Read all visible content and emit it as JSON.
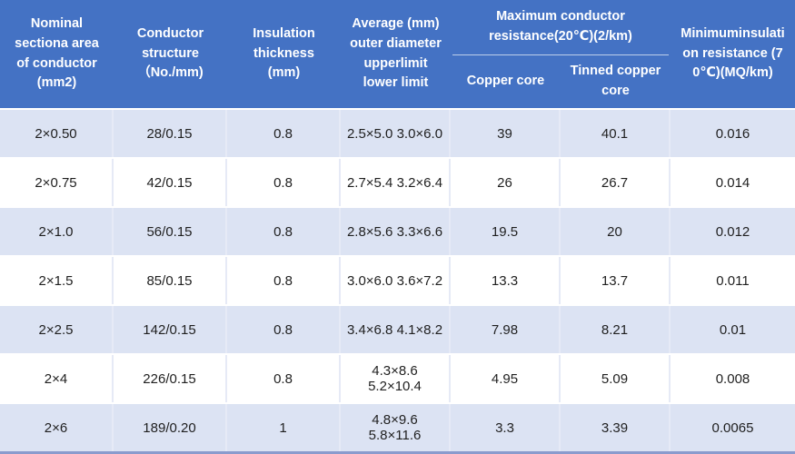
{
  "colors": {
    "header_bg": "#4472C4",
    "header_text": "#FFFFFF",
    "stripe_row_bg": "#DCE3F3",
    "plain_row_bg": "#FFFFFF",
    "body_text": "#1F1F1F",
    "cell_divider": "#E6EAF6",
    "bottom_bar": "#8A9BCD"
  },
  "table": {
    "headers": {
      "nominal_area": "Nominal sectiona area of conductor (mm2)",
      "conductor_structure": "Conductor structure （No./mm)",
      "insulation_thickness": "Insulation thickness (mm)",
      "avg_outer_diameter": "Average (mm) outer diameter upperlimit lower limit",
      "max_resistance_group": "Maximum conductor resistance(20℃)(2/km)",
      "copper_core": "Copper core",
      "tinned_copper_core": "Tinned copper core",
      "min_insulation": "Minimuminsulation resistance (70℃)(MQ/km)"
    },
    "rows": [
      [
        "2×0.50",
        "28/0.15",
        "0.8",
        "2.5×5.0 3.0×6.0",
        "39",
        "40.1",
        "0.016"
      ],
      [
        "2×0.75",
        "42/0.15",
        "0.8",
        "2.7×5.4 3.2×6.4",
        "26",
        "26.7",
        "0.014"
      ],
      [
        "2×1.0",
        "56/0.15",
        "0.8",
        "2.8×5.6 3.3×6.6",
        "19.5",
        "20",
        "0.012"
      ],
      [
        "2×1.5",
        "85/0.15",
        "0.8",
        "3.0×6.0 3.6×7.2",
        "13.3",
        "13.7",
        "0.011"
      ],
      [
        "2×2.5",
        "142/0.15",
        "0.8",
        "3.4×6.8 4.1×8.2",
        "7.98",
        "8.21",
        "0.01"
      ],
      [
        "2×4",
        "226/0.15",
        "0.8",
        "4.3×8.6 5.2×10.4",
        "4.95",
        "5.09",
        "0.008"
      ],
      [
        "2×6",
        "189/0.20",
        "1",
        "4.8×9.6 5.8×11.6",
        "3.3",
        "3.39",
        "0.0065"
      ]
    ]
  }
}
